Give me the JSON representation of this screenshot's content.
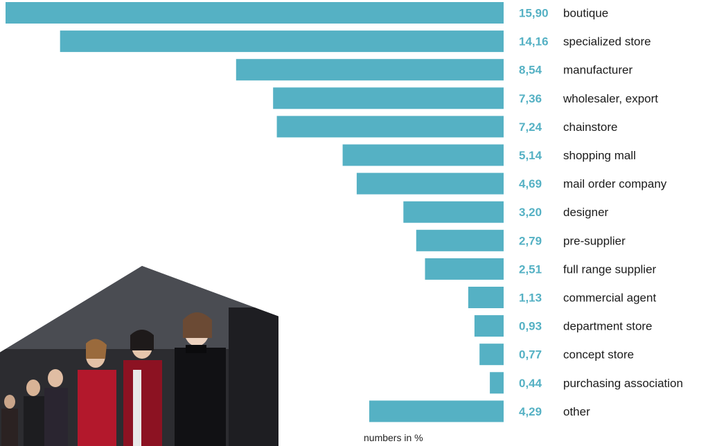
{
  "colors": {
    "bar": "#55b1c4",
    "value_text": "#55b1c4",
    "label_text": "#1b1b1b"
  },
  "footnote": "numbers in %",
  "chart_data": {
    "type": "bar",
    "orientation": "horizontal",
    "direction": "bars extend leftward from a common baseline",
    "categories": [
      "boutique",
      "specialized store",
      "manufacturer",
      "wholesaler, export",
      "chainstore",
      "shopping mall",
      "mail order company",
      "designer",
      "pre-supplier",
      "full range supplier",
      "commercial agent",
      "department store",
      "concept store",
      "purchasing association",
      "other"
    ],
    "values": [
      15.9,
      14.16,
      8.54,
      7.36,
      7.24,
      5.14,
      4.69,
      3.2,
      2.79,
      2.51,
      1.13,
      0.93,
      0.77,
      0.44,
      4.29
    ],
    "value_labels": [
      "15,90",
      "14,16",
      "8,54",
      "7,36",
      "7,24",
      "5,14",
      "4,69",
      "3,20",
      "2,79",
      "2,51",
      "1,13",
      "0,93",
      "0,77",
      "0,44",
      "4,29"
    ],
    "title": "",
    "xlabel": "",
    "ylabel": "",
    "grid": false,
    "legend": "none"
  }
}
